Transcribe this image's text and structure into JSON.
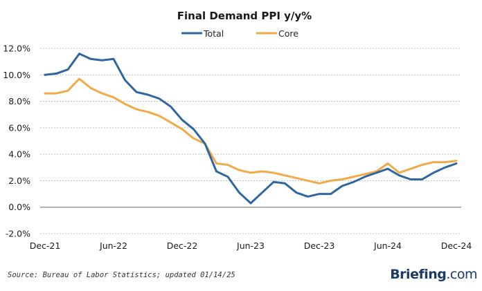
{
  "chart_data": {
    "type": "line",
    "title": "Final Demand PPI y/y%",
    "xlabel": "",
    "ylabel": "",
    "ylim": [
      -2,
      12
    ],
    "yticks": [
      12,
      10,
      8,
      6,
      4,
      2,
      0,
      -2
    ],
    "ytick_labels": [
      "12.0%",
      "10.0%",
      "8.0%",
      "6.0%",
      "4.0%",
      "2.0%",
      "0.0%",
      "-2.0%"
    ],
    "negative_tick_color": "#e8191e",
    "grid": true,
    "legend_position": "top-center",
    "x": [
      "Dec-21",
      "Jan-22",
      "Feb-22",
      "Mar-22",
      "Apr-22",
      "May-22",
      "Jun-22",
      "Jul-22",
      "Aug-22",
      "Sep-22",
      "Oct-22",
      "Nov-22",
      "Dec-22",
      "Jan-23",
      "Feb-23",
      "Mar-23",
      "Apr-23",
      "May-23",
      "Jun-23",
      "Jul-23",
      "Aug-23",
      "Sep-23",
      "Oct-23",
      "Nov-23",
      "Dec-23",
      "Jan-24",
      "Feb-24",
      "Mar-24",
      "Apr-24",
      "May-24",
      "Jun-24",
      "Jul-24",
      "Aug-24",
      "Sep-24",
      "Oct-24",
      "Nov-24",
      "Dec-24"
    ],
    "xtick_labels": [
      "Dec-21",
      "Jun-22",
      "Dec-22",
      "Jun-23",
      "Dec-23",
      "Jun-24",
      "Dec-24"
    ],
    "series": [
      {
        "name": "Total",
        "color": "#2e66a0",
        "values": [
          10.0,
          10.1,
          10.4,
          11.6,
          11.2,
          11.1,
          11.2,
          9.6,
          8.7,
          8.5,
          8.2,
          7.6,
          6.6,
          5.9,
          4.8,
          2.7,
          2.3,
          1.1,
          0.3,
          1.1,
          1.9,
          1.8,
          1.1,
          0.8,
          1.0,
          1.0,
          1.6,
          1.9,
          2.3,
          2.6,
          2.9,
          2.4,
          2.1,
          2.1,
          2.6,
          3.0,
          3.3
        ]
      },
      {
        "name": "Core",
        "color": "#f0aa48",
        "values": [
          8.6,
          8.6,
          8.8,
          9.7,
          9.0,
          8.6,
          8.3,
          7.8,
          7.4,
          7.2,
          6.9,
          6.4,
          5.9,
          5.2,
          4.8,
          3.3,
          3.2,
          2.8,
          2.6,
          2.7,
          2.6,
          2.4,
          2.2,
          2.0,
          1.8,
          2.0,
          2.1,
          2.3,
          2.5,
          2.7,
          3.3,
          2.6,
          2.9,
          3.2,
          3.4,
          3.4,
          3.5
        ]
      }
    ]
  },
  "footer": {
    "source": "Source: Bureau of Labor Statistics; updated 01/14/25",
    "brand_name": "Briefing",
    "brand_domain": ".com"
  }
}
